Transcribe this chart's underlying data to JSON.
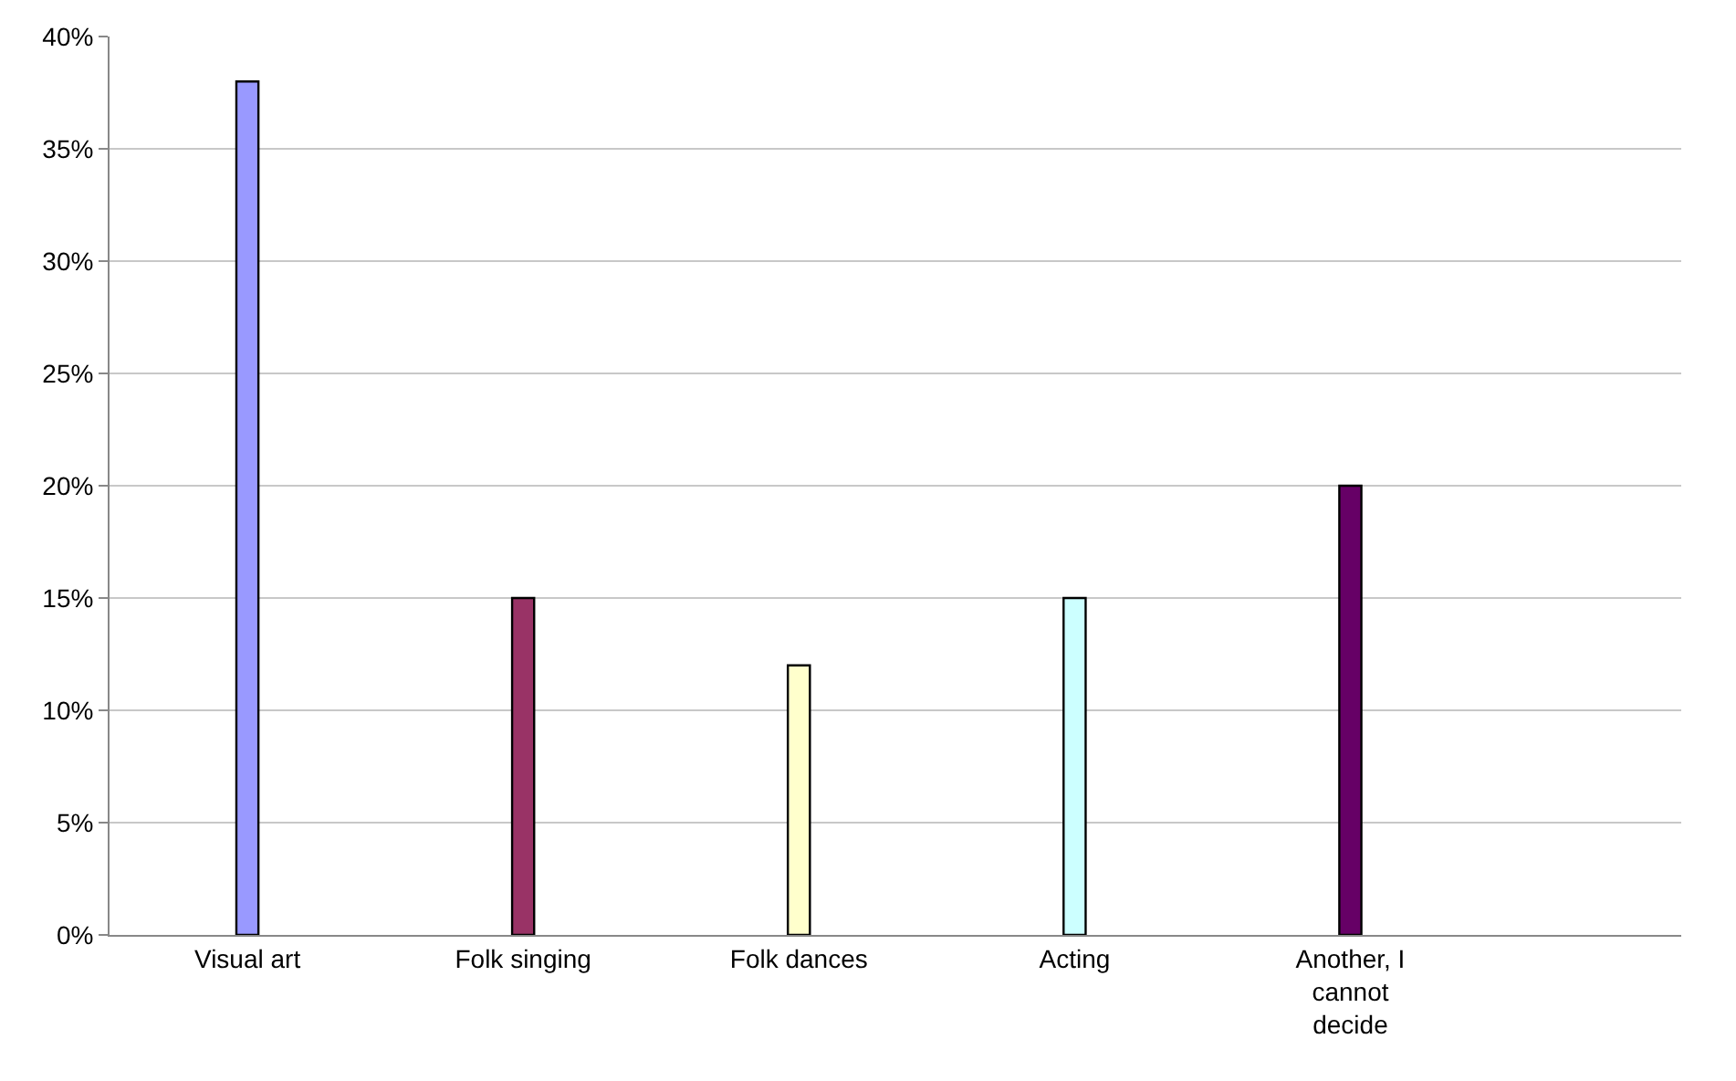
{
  "chart_data": {
    "type": "bar",
    "categories": [
      "Visual art",
      "Folk singing",
      "Folk dances",
      "Acting",
      "Another, I cannot decide"
    ],
    "values": [
      38,
      15,
      12,
      15,
      20
    ],
    "colors": [
      "#9999ff",
      "#993366",
      "#ffffcc",
      "#ccffff",
      "#660066"
    ],
    "ylim": [
      0,
      40
    ],
    "yticks": [
      {
        "value": 0,
        "label": "0%"
      },
      {
        "value": 5,
        "label": "5%"
      },
      {
        "value": 10,
        "label": "10%"
      },
      {
        "value": 15,
        "label": "15%"
      },
      {
        "value": 20,
        "label": "20%"
      },
      {
        "value": 25,
        "label": "25%"
      },
      {
        "value": 30,
        "label": "30%"
      },
      {
        "value": 35,
        "label": "35%"
      },
      {
        "value": 40,
        "label": "40%"
      }
    ],
    "grid": "y"
  }
}
